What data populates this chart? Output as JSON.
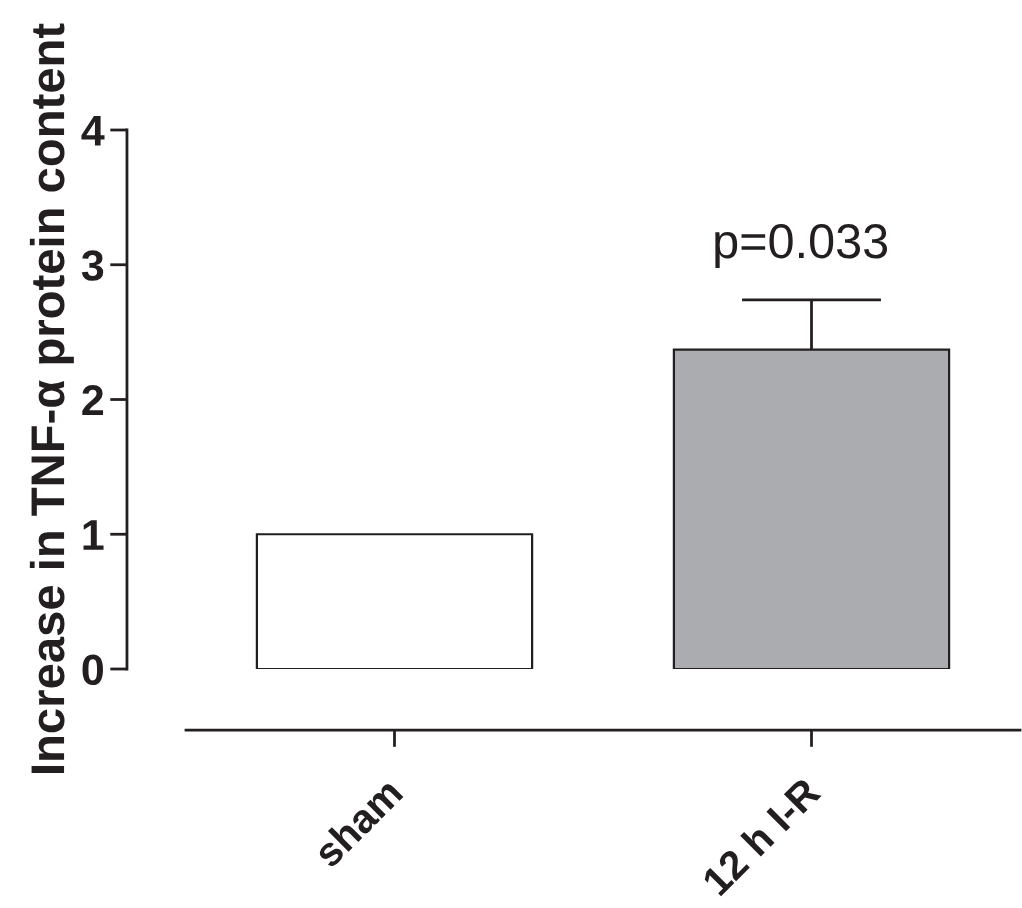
{
  "chart_data": {
    "type": "bar",
    "ylabel": "Increase in TNF-α protein content",
    "categories": [
      "sham",
      "12 h I-R"
    ],
    "values": [
      1.0,
      2.37
    ],
    "colors": [
      "#ffffff",
      "#abacb0"
    ],
    "errors": [
      null,
      [
        2.37,
        2.74
      ]
    ],
    "ylim": [
      0,
      4
    ],
    "yticks": [
      0,
      1,
      2,
      3,
      4
    ],
    "annotations": [
      "p=0.033"
    ],
    "grid": false,
    "legend": false
  }
}
